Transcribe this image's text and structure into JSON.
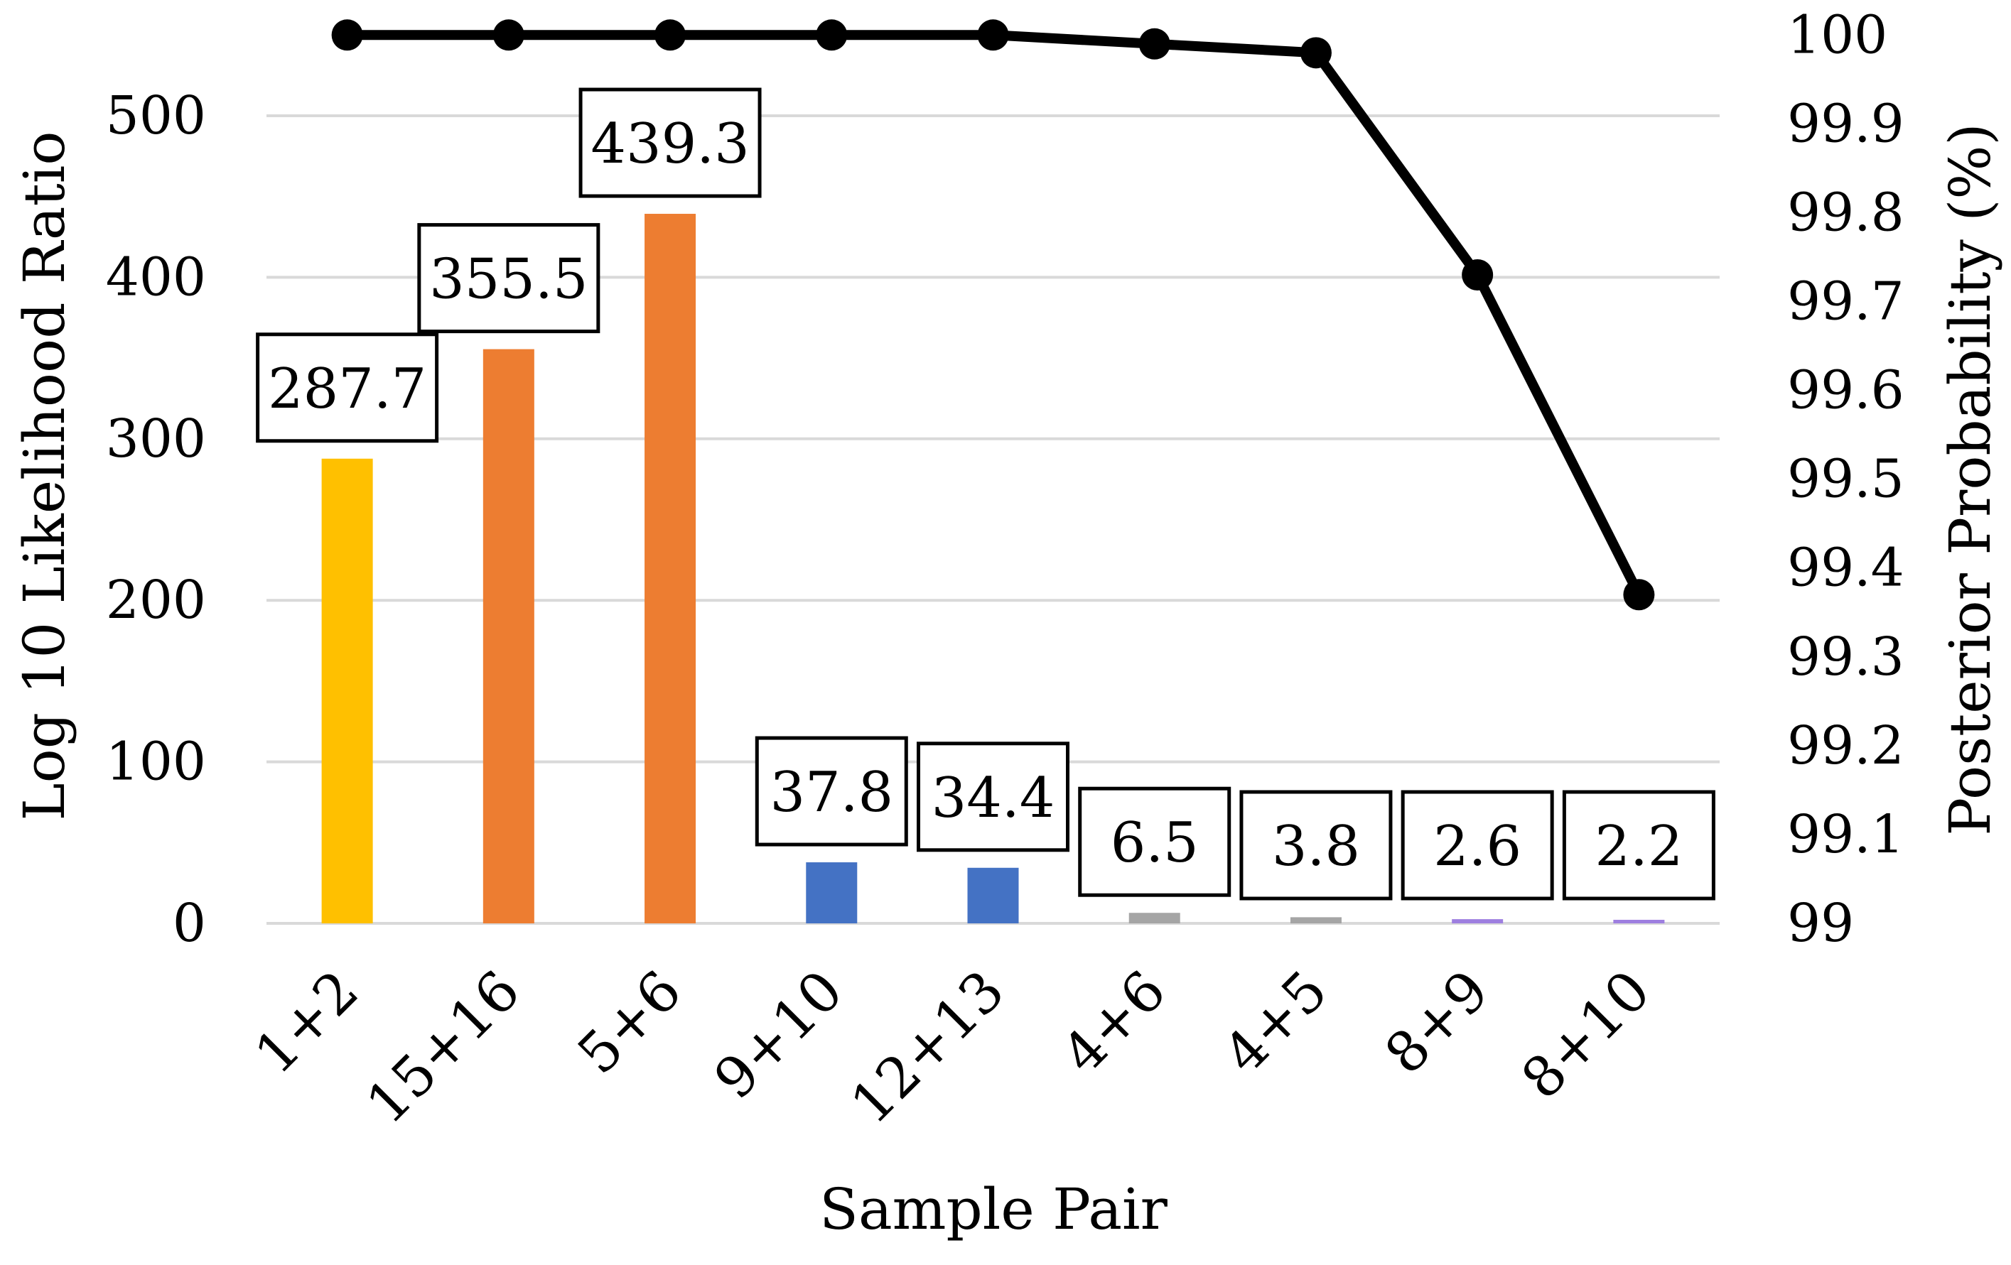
{
  "chart_data": {
    "type": "bar",
    "xlabel": "Sample Pair",
    "ylabel": "Log 10 Likelihood Ratio",
    "y2label": "Posterior Probability (%)",
    "categories": [
      "1+2",
      "15+16",
      "5+6",
      "9+10",
      "12+13",
      "4+6",
      "4+5",
      "8+9",
      "8+10"
    ],
    "ylim": [
      0,
      550
    ],
    "yticks": [
      0,
      100,
      200,
      300,
      400,
      500
    ],
    "y2lim": [
      99,
      100
    ],
    "y2ticks": [
      99,
      99.1,
      99.2,
      99.3,
      99.4,
      99.5,
      99.6,
      99.7,
      99.8,
      99.9,
      100
    ],
    "grid": true,
    "series": [
      {
        "kind": "bar",
        "axis": "left",
        "values": [
          287.7,
          355.5,
          439.3,
          37.8,
          34.4,
          6.5,
          3.8,
          2.6,
          2.2
        ],
        "data_labels": [
          "287.7",
          "355.5",
          "439.3",
          "37.8",
          "34.4",
          "6.5",
          "3.8",
          "2.6",
          "2.2"
        ],
        "colors": [
          "#FFC000",
          "#ED7D31",
          "#ED7D31",
          "#4472C4",
          "#4472C4",
          "#A5A5A5",
          "#A5A5A5",
          "#9E7FE0",
          "#9E7FE0"
        ]
      },
      {
        "kind": "line",
        "axis": "right",
        "values": [
          100,
          100,
          100,
          100,
          100,
          99.99,
          99.98,
          99.73,
          99.37
        ],
        "color": "#000000"
      }
    ]
  }
}
